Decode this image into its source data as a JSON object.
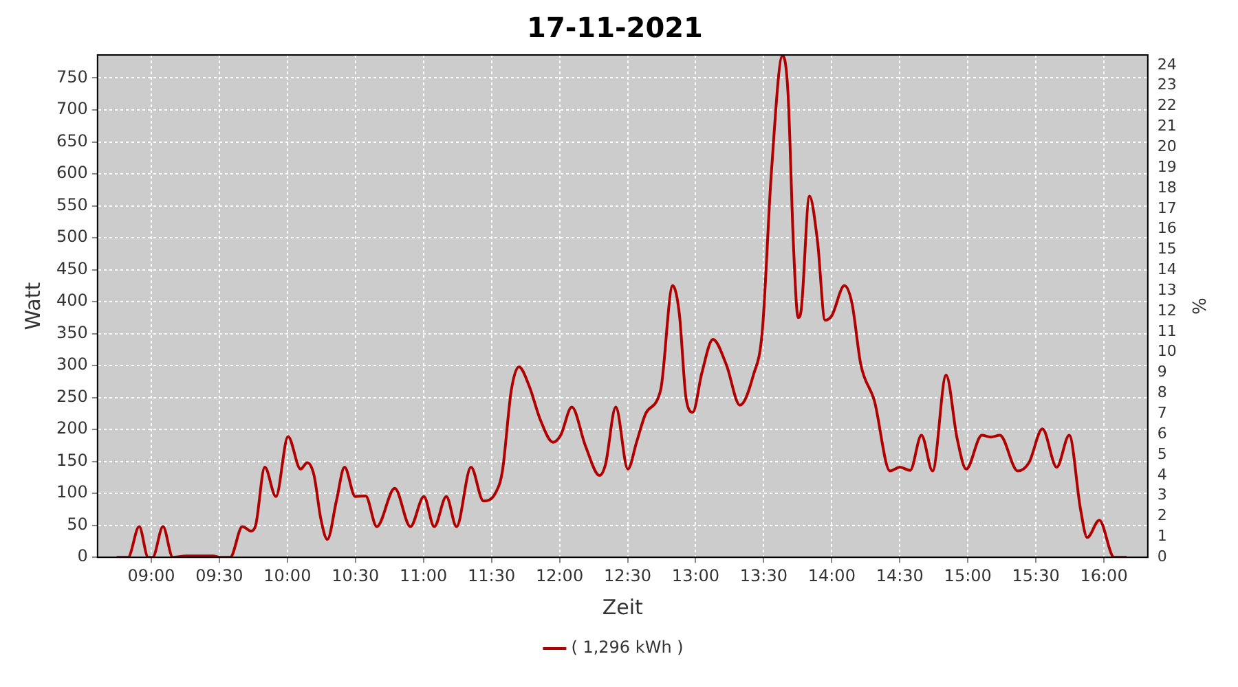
{
  "chart_data": {
    "type": "line",
    "title": "17-11-2021",
    "xlabel": "Zeit",
    "ylabel": "Watt",
    "y2label": "%",
    "x": [
      8.746,
      8.829,
      8.911,
      8.977,
      9.01,
      9.086,
      9.158,
      9.257,
      9.455,
      9.504,
      9.58,
      9.669,
      9.735,
      9.768,
      9.834,
      9.916,
      10.005,
      10.097,
      10.146,
      10.196,
      10.245,
      10.294,
      10.36,
      10.42,
      10.499,
      10.575,
      10.657,
      10.789,
      10.904,
      11.003,
      11.079,
      11.168,
      11.243,
      11.349,
      11.441,
      11.53,
      11.58,
      11.645,
      11.701,
      11.777,
      11.859,
      11.952,
      12.008,
      12.09,
      12.189,
      12.294,
      12.337,
      12.413,
      12.502,
      12.567,
      12.633,
      12.715,
      12.748,
      12.831,
      12.88,
      12.93,
      12.979,
      13.045,
      13.127,
      13.226,
      13.325,
      13.424,
      13.49,
      13.556,
      13.638,
      13.678,
      13.72,
      13.753,
      13.776,
      13.836,
      13.895,
      13.951,
      14.0,
      14.093,
      14.148,
      14.214,
      14.313,
      14.428,
      14.501,
      14.576,
      14.659,
      14.741,
      14.84,
      14.922,
      14.988,
      15.103,
      15.169,
      15.235,
      15.367,
      15.449,
      15.548,
      15.653,
      15.745,
      15.828,
      15.877,
      15.966,
      16.075,
      16.167
    ],
    "series": [
      {
        "name": "( 1,296 kWh )",
        "color": "#b00000",
        "values": [
          0,
          0,
          48,
          0,
          0,
          48,
          0,
          2,
          2,
          0,
          0,
          48,
          41,
          51,
          141,
          95,
          189,
          138,
          148,
          128,
          61,
          28,
          88,
          141,
          95,
          96,
          48,
          108,
          48,
          95,
          48,
          95,
          48,
          141,
          88,
          101,
          135,
          261,
          298,
          268,
          215,
          180,
          191,
          235,
          175,
          128,
          145,
          235,
          138,
          181,
          225,
          245,
          268,
          425,
          381,
          248,
          227,
          288,
          341,
          301,
          238,
          285,
          355,
          601,
          785,
          728,
          481,
          375,
          388,
          565,
          495,
          371,
          378,
          425,
          398,
          301,
          245,
          135,
          141,
          136,
          191,
          135,
          285,
          185,
          138,
          191,
          188,
          191,
          135,
          148,
          201,
          141,
          191,
          75,
          31,
          58,
          0,
          0
        ]
      }
    ],
    "xlim": [
      8.605,
      16.322
    ],
    "xticks": [
      {
        "value": 9,
        "label": "09:00"
      },
      {
        "value": 9.5,
        "label": "09:30"
      },
      {
        "value": 10,
        "label": "10:00"
      },
      {
        "value": 10.5,
        "label": "10:30"
      },
      {
        "value": 11,
        "label": "11:00"
      },
      {
        "value": 11.5,
        "label": "11:30"
      },
      {
        "value": 12,
        "label": "12:00"
      },
      {
        "value": 12.5,
        "label": "12:30"
      },
      {
        "value": 13,
        "label": "13:00"
      },
      {
        "value": 13.5,
        "label": "13:30"
      },
      {
        "value": 14,
        "label": "14:00"
      },
      {
        "value": 14.5,
        "label": "14:30"
      },
      {
        "value": 15,
        "label": "15:00"
      },
      {
        "value": 15.5,
        "label": "15:30"
      },
      {
        "value": 16,
        "label": "16:00"
      }
    ],
    "ylim": [
      0,
      786
    ],
    "yticks": [
      0,
      50,
      100,
      150,
      200,
      250,
      300,
      350,
      400,
      450,
      500,
      550,
      600,
      650,
      700,
      750
    ],
    "y2lim": [
      0,
      24.5
    ],
    "y2ticks": [
      0,
      1,
      2,
      3,
      4,
      5,
      6,
      7,
      8,
      9,
      10,
      11,
      12,
      13,
      14,
      15,
      16,
      17,
      18,
      19,
      20,
      21,
      22,
      23,
      24
    ],
    "grid": true,
    "legend": "bottom",
    "marker": "none",
    "line_style": "solid"
  }
}
